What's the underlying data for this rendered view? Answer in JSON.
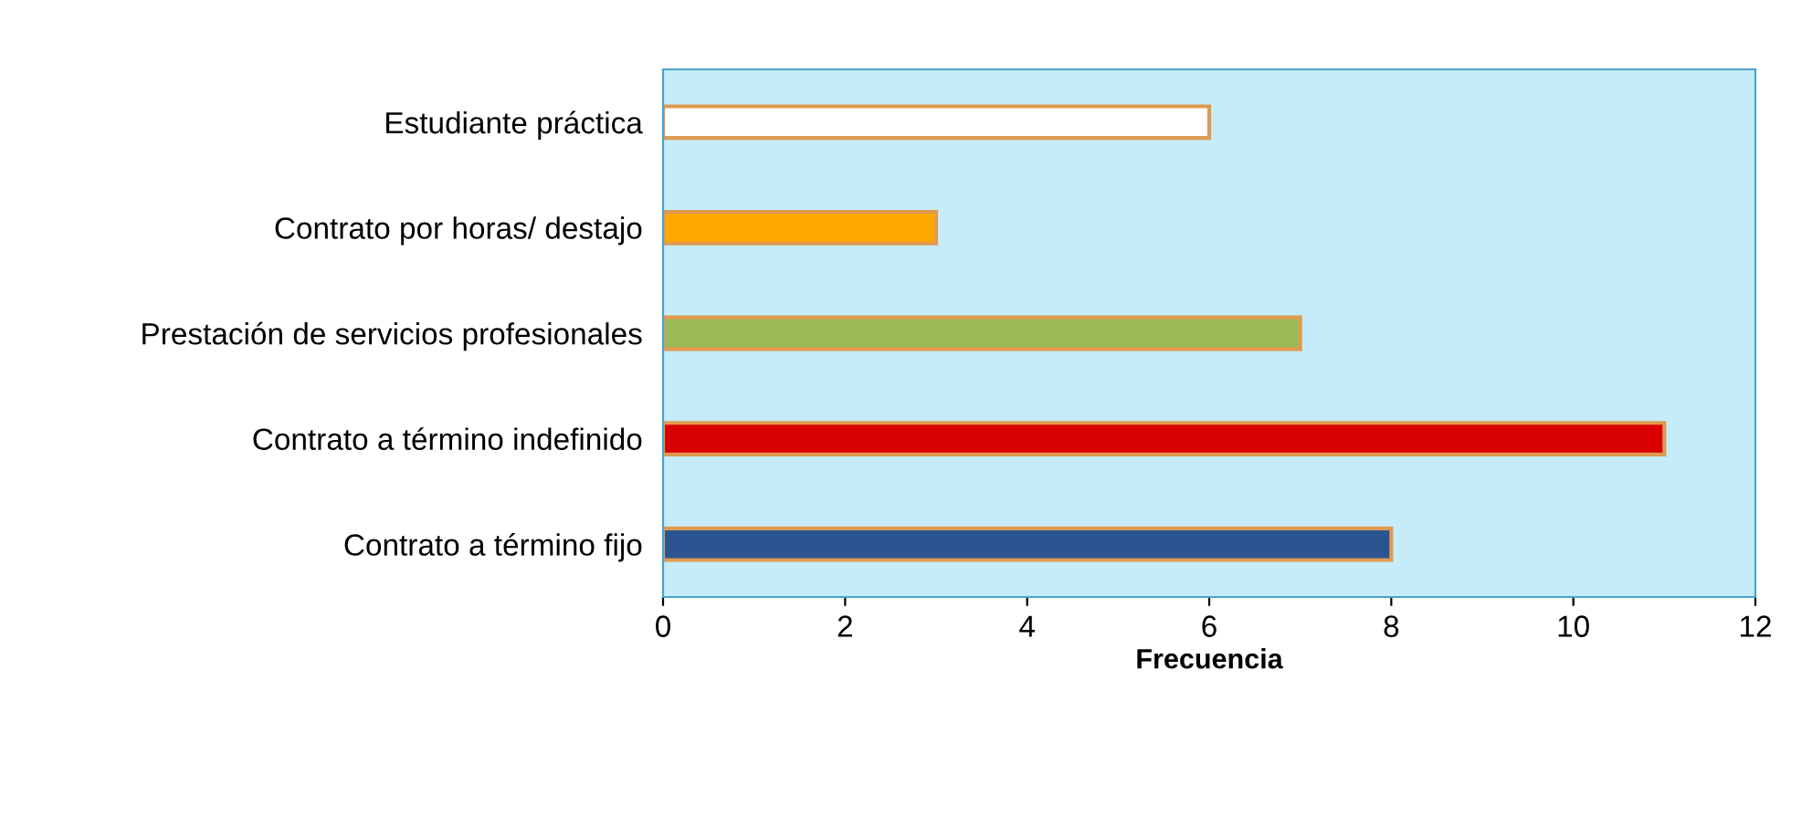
{
  "chart_data": {
    "type": "bar",
    "orientation": "horizontal",
    "xlabel": "Frecuencia",
    "categories": [
      "Estudiante práctica",
      "Contrato por horas/ destajo",
      "Prestación de servicios profesionales",
      "Contrato a término indefinido",
      "Contrato a término fijo"
    ],
    "values": [
      6,
      3,
      7,
      11,
      8
    ],
    "colors": [
      "#ffffff",
      "#ffa800",
      "#9bbb59",
      "#d80000",
      "#2b5590"
    ],
    "xlim": [
      0,
      12
    ],
    "xticks": [
      0,
      2,
      4,
      6,
      8,
      10,
      12
    ],
    "grid": false,
    "legend": false
  }
}
